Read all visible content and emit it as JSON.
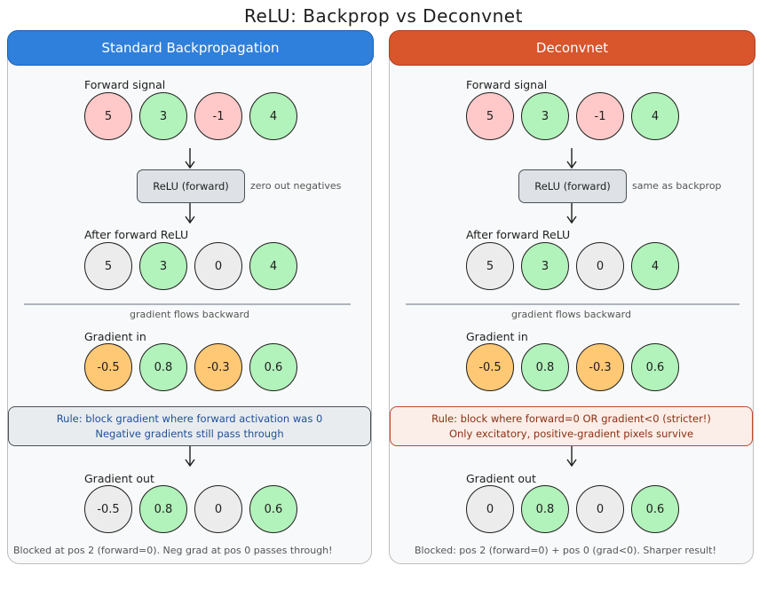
{
  "title": "ReLU: Backprop vs Deconvnet",
  "panels": {
    "left": {
      "header": "Standard Backpropagation",
      "forward_label": "Forward signal",
      "forward": [
        "5",
        "3",
        "-1",
        "4"
      ],
      "relu_box": "ReLU (forward)",
      "relu_note": "zero out negatives",
      "after_label": "After forward ReLU",
      "after": [
        "5",
        "3",
        "0",
        "4"
      ],
      "flow_note": "gradient flows backward",
      "grad_in_label": "Gradient in",
      "grad_in": [
        "-0.5",
        "0.8",
        "-0.3",
        "0.6"
      ],
      "rule_line1": "Rule: block gradient where forward activation was 0",
      "rule_line2": "Negative gradients still pass through",
      "grad_out_label": "Gradient out",
      "grad_out": [
        "-0.5",
        "0.8",
        "0",
        "0.6"
      ],
      "footer": "Blocked at pos 2 (forward=0). Neg grad at pos 0 passes through!"
    },
    "right": {
      "header": "Deconvnet",
      "forward_label": "Forward signal",
      "forward": [
        "5",
        "3",
        "-1",
        "4"
      ],
      "relu_box": "ReLU (forward)",
      "relu_note": "same as backprop",
      "after_label": "After forward ReLU",
      "after": [
        "5",
        "3",
        "0",
        "4"
      ],
      "flow_note": "gradient flows backward",
      "grad_in_label": "Gradient in",
      "grad_in": [
        "-0.5",
        "0.8",
        "-0.3",
        "0.6"
      ],
      "rule_line1": "Rule: block where forward=0 OR gradient<0 (stricter!)",
      "rule_line2": "Only excitatory, positive-gradient pixels survive",
      "grad_out_label": "Gradient out",
      "grad_out": [
        "0",
        "0.8",
        "0",
        "0.6"
      ],
      "footer": "Blocked: pos 2 (forward=0) + pos 0 (grad<0). Sharper result!"
    }
  },
  "colors": {
    "negative_input": "#ffc9c9",
    "positive": "#b2f2bb",
    "zeroed": "#ececec",
    "negative_gradient": "#ffc875",
    "backprop_header": "#2f80dc",
    "deconvnet_header": "#d9552b"
  }
}
